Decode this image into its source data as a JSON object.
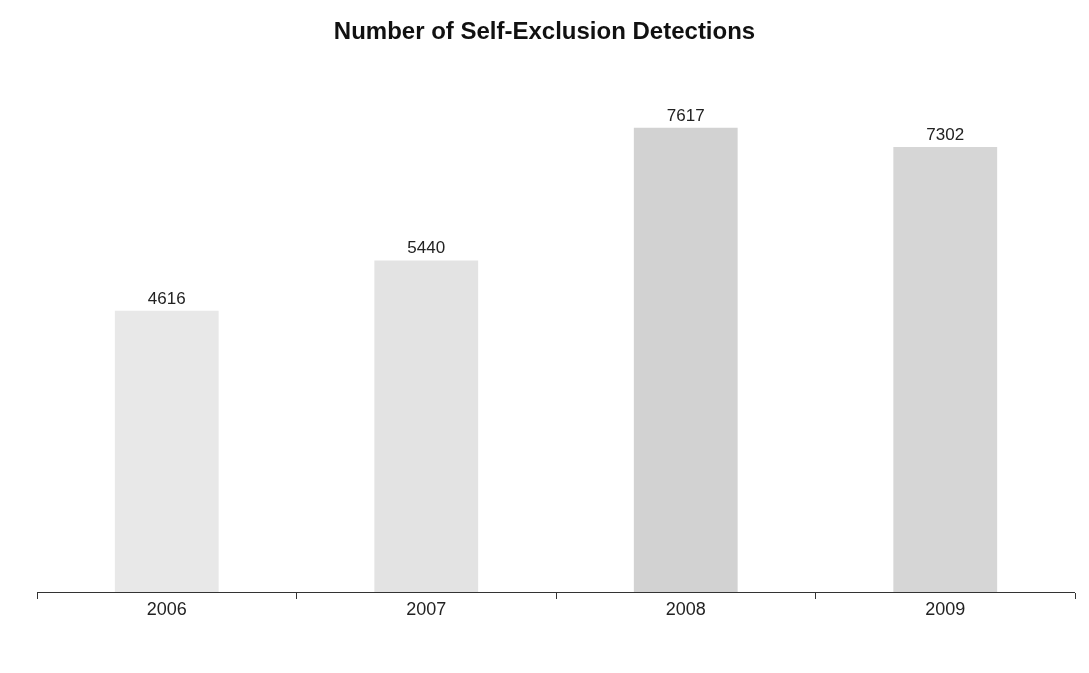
{
  "chart_data": {
    "type": "bar",
    "title": "Number of Self-Exclusion Detections",
    "categories": [
      "2006",
      "2007",
      "2008",
      "2009"
    ],
    "values": [
      4616,
      5440,
      7617,
      7302
    ],
    "colors": [
      "#e8e8e8",
      "#e3e3e3",
      "#d2d2d2",
      "#d6d6d6"
    ],
    "data_labels": true
  }
}
